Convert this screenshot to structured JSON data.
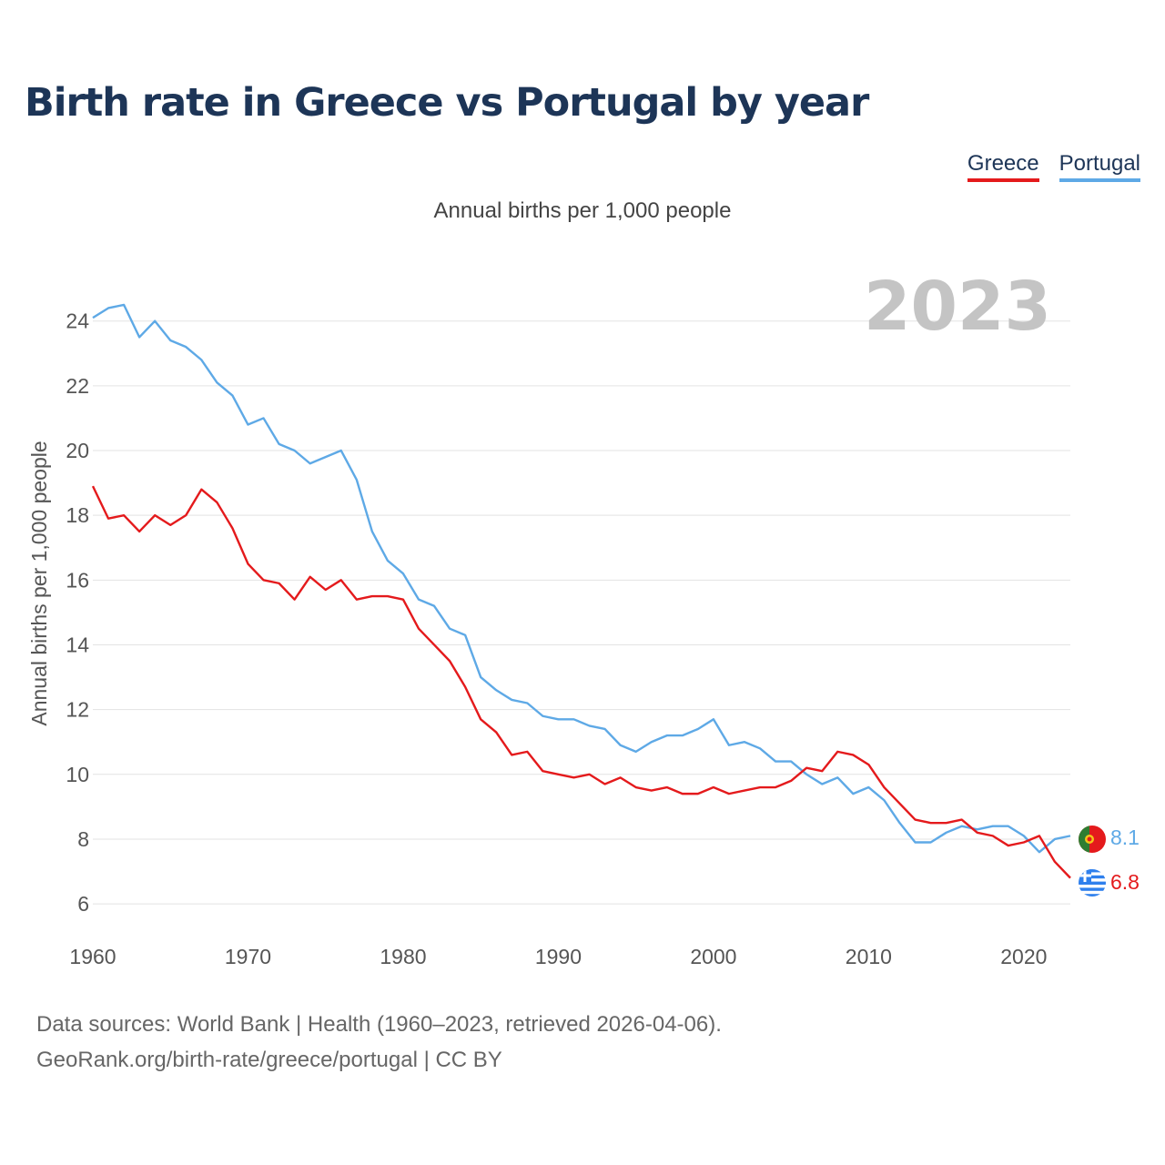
{
  "header": {
    "title": "Birth rate in Greece vs Portugal by year",
    "subtitle": "Annual births per 1,000 people"
  },
  "legend": [
    {
      "name": "Greece",
      "color": "#e41a1c"
    },
    {
      "name": "Portugal",
      "color": "#5ea9e6"
    }
  ],
  "footer": {
    "line1": "Data sources: World Bank | Health (1960–2023, retrieved 2026-04-06).",
    "line2": "GeoRank.org/birth-rate/greece/portugal | CC BY"
  },
  "chart_data": {
    "type": "line",
    "title": "Birth rate in Greece vs Portugal by year",
    "subtitle": "Annual births per 1,000 people",
    "xlabel": "",
    "ylabel": "Annual births per 1,000 people",
    "year_label": "2023",
    "xlim": [
      1960,
      2023
    ],
    "ylim": [
      5.3,
      25.2
    ],
    "x_ticks": [
      1960,
      1970,
      1980,
      1990,
      2000,
      2010,
      2020
    ],
    "y_ticks": [
      6,
      8,
      10,
      12,
      14,
      16,
      18,
      20,
      22,
      24
    ],
    "grid": true,
    "legend_position": "top-right",
    "x": [
      1960,
      1961,
      1962,
      1963,
      1964,
      1965,
      1966,
      1967,
      1968,
      1969,
      1970,
      1971,
      1972,
      1973,
      1974,
      1975,
      1976,
      1977,
      1978,
      1979,
      1980,
      1981,
      1982,
      1983,
      1984,
      1985,
      1986,
      1987,
      1988,
      1989,
      1990,
      1991,
      1992,
      1993,
      1994,
      1995,
      1996,
      1997,
      1998,
      1999,
      2000,
      2001,
      2002,
      2003,
      2004,
      2005,
      2006,
      2007,
      2008,
      2009,
      2010,
      2011,
      2012,
      2013,
      2014,
      2015,
      2016,
      2017,
      2018,
      2019,
      2020,
      2021,
      2022,
      2023
    ],
    "series": [
      {
        "name": "Greece",
        "color": "#e41a1c",
        "end_label": "6.8",
        "values": [
          18.9,
          17.9,
          18.0,
          17.5,
          18.0,
          17.7,
          18.0,
          18.8,
          18.4,
          17.6,
          16.5,
          16.0,
          15.9,
          15.4,
          16.1,
          15.7,
          16.0,
          15.4,
          15.5,
          15.5,
          15.4,
          14.5,
          14.0,
          13.5,
          12.7,
          11.7,
          11.3,
          10.6,
          10.7,
          10.1,
          10.0,
          9.9,
          10.0,
          9.7,
          9.9,
          9.6,
          9.5,
          9.6,
          9.4,
          9.4,
          9.6,
          9.4,
          9.5,
          9.6,
          9.6,
          9.8,
          10.2,
          10.1,
          10.7,
          10.6,
          10.3,
          9.6,
          9.1,
          8.6,
          8.5,
          8.5,
          8.6,
          8.2,
          8.1,
          7.8,
          7.9,
          8.1,
          7.3,
          6.8
        ]
      },
      {
        "name": "Portugal",
        "color": "#5ea9e6",
        "end_label": "8.1",
        "values": [
          24.1,
          24.4,
          24.5,
          23.5,
          24.0,
          23.4,
          23.2,
          22.8,
          22.1,
          21.7,
          20.8,
          21.0,
          20.2,
          20.0,
          19.6,
          19.8,
          20.0,
          19.1,
          17.5,
          16.6,
          16.2,
          15.4,
          15.2,
          14.5,
          14.3,
          13.0,
          12.6,
          12.3,
          12.2,
          11.8,
          11.7,
          11.7,
          11.5,
          11.4,
          10.9,
          10.7,
          11.0,
          11.2,
          11.2,
          11.4,
          11.7,
          10.9,
          11.0,
          10.8,
          10.4,
          10.4,
          10.0,
          9.7,
          9.9,
          9.4,
          9.6,
          9.2,
          8.5,
          7.9,
          7.9,
          8.2,
          8.4,
          8.3,
          8.4,
          8.4,
          8.1,
          7.6,
          8.0,
          8.1
        ]
      }
    ]
  }
}
